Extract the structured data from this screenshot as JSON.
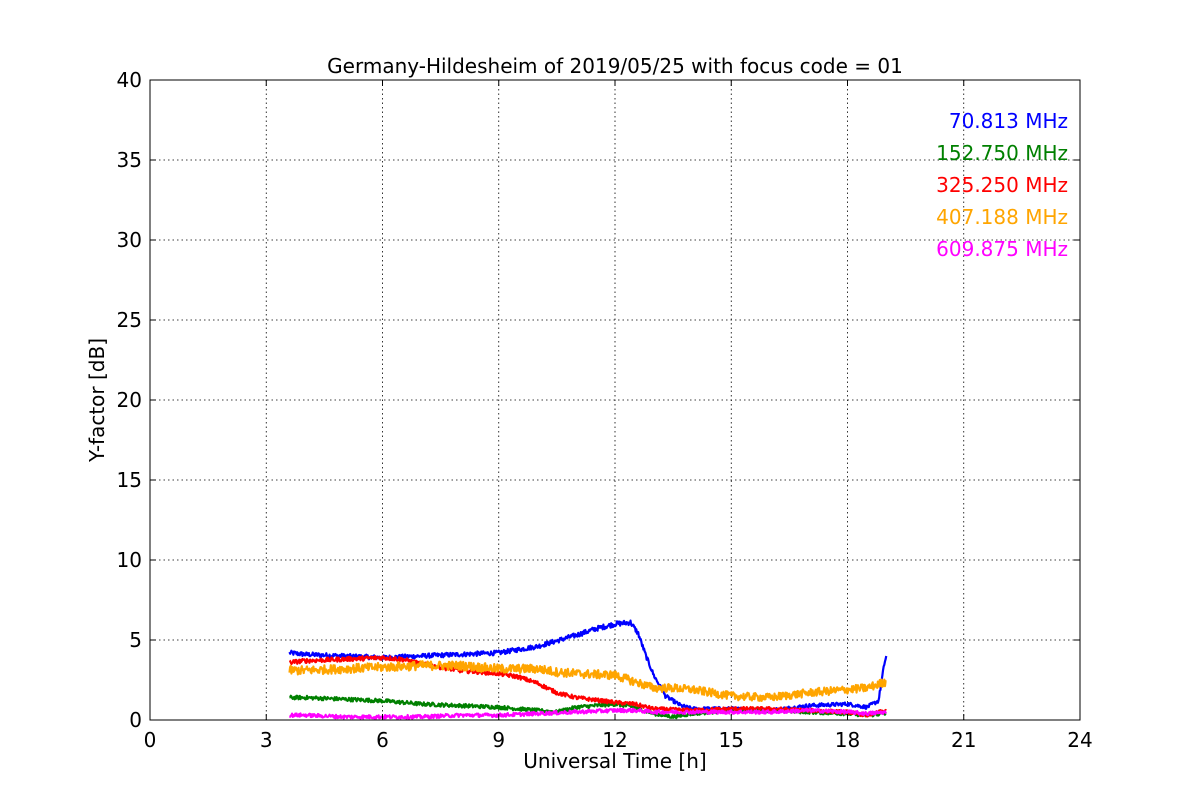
{
  "chart_data": {
    "type": "line",
    "title": "Germany-Hildesheim of 2019/05/25 with focus code = 01",
    "xlabel": "Universal Time [h]",
    "ylabel": "Y-factor [dB]",
    "xlim": [
      0,
      24
    ],
    "ylim": [
      0,
      40
    ],
    "xticks": [
      0,
      3,
      6,
      9,
      12,
      15,
      18,
      21,
      24
    ],
    "yticks": [
      0,
      5,
      10,
      15,
      20,
      25,
      30,
      35,
      40
    ],
    "grid": true,
    "legend_placement": "top-right",
    "series": [
      {
        "name": "70.813 MHz",
        "color": "#0000ff",
        "x": [
          3.6,
          4.0,
          5.0,
          6.0,
          7.0,
          8.0,
          9.0,
          10.0,
          11.0,
          11.5,
          12.0,
          12.4,
          12.6,
          12.8,
          13.0,
          13.3,
          13.7,
          14.0,
          15.0,
          16.0,
          17.0,
          18.0,
          18.5,
          18.8,
          18.95,
          19.0
        ],
        "y": [
          4.2,
          4.1,
          4.0,
          3.9,
          4.0,
          4.1,
          4.2,
          4.6,
          5.3,
          5.7,
          6.0,
          6.1,
          5.4,
          4.0,
          2.8,
          1.5,
          0.9,
          0.7,
          0.7,
          0.6,
          0.9,
          1.0,
          0.8,
          1.2,
          3.5,
          4.0
        ]
      },
      {
        "name": "152.750 MHz",
        "color": "#008000",
        "x": [
          3.6,
          4.0,
          5.0,
          6.0,
          7.0,
          8.0,
          9.0,
          10.0,
          10.5,
          11.0,
          12.0,
          12.5,
          13.0,
          13.5,
          14.0,
          15.0,
          16.0,
          17.0,
          18.0,
          18.5,
          19.0
        ],
        "y": [
          1.4,
          1.4,
          1.3,
          1.2,
          1.0,
          0.9,
          0.8,
          0.6,
          0.5,
          0.8,
          1.0,
          0.8,
          0.4,
          0.2,
          0.4,
          0.6,
          0.6,
          0.5,
          0.4,
          0.3,
          0.4
        ]
      },
      {
        "name": "325.250 MHz",
        "color": "#ff0000",
        "x": [
          3.6,
          4.0,
          5.0,
          6.0,
          6.5,
          7.0,
          8.0,
          9.0,
          9.5,
          10.0,
          10.5,
          11.0,
          12.0,
          12.5,
          13.0,
          14.0,
          15.0,
          16.0,
          17.0,
          18.0,
          18.5,
          19.0
        ],
        "y": [
          3.6,
          3.7,
          3.8,
          3.9,
          3.8,
          3.5,
          3.1,
          2.9,
          2.7,
          2.3,
          1.7,
          1.4,
          1.1,
          1.0,
          0.7,
          0.6,
          0.7,
          0.7,
          0.6,
          0.5,
          0.3,
          0.6
        ]
      },
      {
        "name": "407.188 MHz",
        "color": "#ffa500",
        "x": [
          3.6,
          4.0,
          5.0,
          6.0,
          7.0,
          8.0,
          9.0,
          10.0,
          10.5,
          11.0,
          12.0,
          12.5,
          13.0,
          13.5,
          14.0,
          15.0,
          16.0,
          17.0,
          18.0,
          18.5,
          19.0
        ],
        "y": [
          3.1,
          3.1,
          3.2,
          3.3,
          3.4,
          3.4,
          3.2,
          3.2,
          3.0,
          2.9,
          2.8,
          2.4,
          2.0,
          2.0,
          1.9,
          1.5,
          1.4,
          1.7,
          1.9,
          2.0,
          2.4
        ]
      },
      {
        "name": "609.875 MHz",
        "color": "#ff00ff",
        "x": [
          3.6,
          4.0,
          5.0,
          6.0,
          7.0,
          8.0,
          9.0,
          10.0,
          11.0,
          12.0,
          12.5,
          13.0,
          14.0,
          15.0,
          16.0,
          17.0,
          18.0,
          18.5,
          19.0
        ],
        "y": [
          0.3,
          0.3,
          0.2,
          0.2,
          0.2,
          0.3,
          0.3,
          0.4,
          0.5,
          0.6,
          0.6,
          0.5,
          0.5,
          0.5,
          0.5,
          0.6,
          0.5,
          0.4,
          0.5
        ]
      }
    ]
  }
}
